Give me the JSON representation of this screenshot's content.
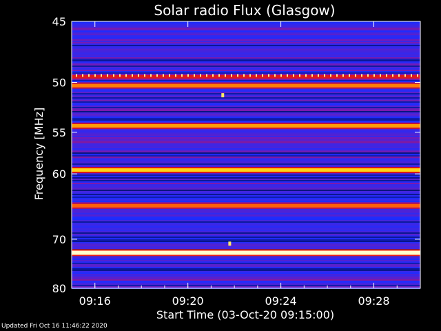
{
  "footer": {
    "updated": "Updated Fri Oct 16 11:46:22 2020"
  },
  "chart_data": {
    "type": "heatmap",
    "title": "Solar radio Flux (Glasgow)",
    "xlabel": "Start Time (03-Oct-20 09:15:00)",
    "ylabel": "Frequency [MHz]",
    "x_ticks": [
      "09:16",
      "09:20",
      "09:24",
      "09:28"
    ],
    "x_tick_minutes": [
      1,
      5,
      9,
      13
    ],
    "xlim_minutes": [
      0,
      15
    ],
    "y_ticks": [
      45,
      50,
      55,
      60,
      70,
      80
    ],
    "ylim": [
      45,
      80
    ],
    "y_scale": "reciprocal",
    "colormap": [
      "#000a50",
      "#1e2cff",
      "#7a1ab0",
      "#d01020",
      "#ff2a10",
      "#ffd000",
      "#ffffcc"
    ],
    "bands": [
      {
        "mhz": 49.5,
        "intensity": 0.55,
        "dotted": true
      },
      {
        "mhz": 50.3,
        "intensity": 0.75
      },
      {
        "mhz": 54.3,
        "intensity": 0.78
      },
      {
        "mhz": 59.5,
        "intensity": 0.85
      },
      {
        "mhz": 64.5,
        "intensity": 0.72
      },
      {
        "mhz": 72.5,
        "intensity": 1.0
      }
    ],
    "spots": [
      {
        "minute": 6.5,
        "mhz": 51.2
      },
      {
        "minute": 6.8,
        "mhz": 70.8
      }
    ]
  }
}
